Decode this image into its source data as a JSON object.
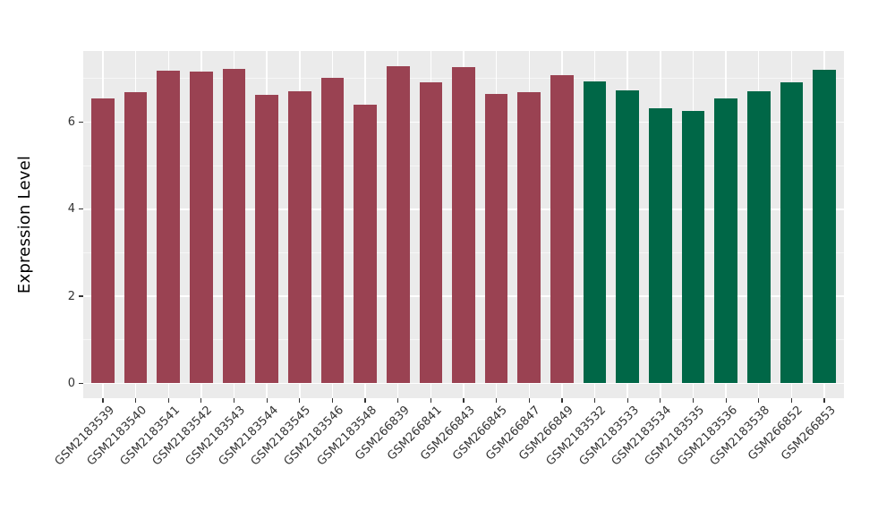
{
  "chart_data": {
    "type": "bar",
    "title": "",
    "xlabel": "",
    "ylabel": "Expression Level",
    "categories": [
      "GSM2183539",
      "GSM2183540",
      "GSM2183541",
      "GSM2183542",
      "GSM2183543",
      "GSM2183544",
      "GSM2183545",
      "GSM2183546",
      "GSM2183548",
      "GSM266839",
      "GSM266841",
      "GSM266843",
      "GSM266845",
      "GSM266847",
      "GSM266849",
      "GSM2183532",
      "GSM2183533",
      "GSM2183534",
      "GSM2183535",
      "GSM2183536",
      "GSM2183538",
      "GSM266852",
      "GSM266853"
    ],
    "values": [
      6.55,
      6.7,
      7.18,
      7.16,
      7.23,
      6.63,
      6.71,
      7.02,
      6.4,
      7.29,
      6.91,
      7.26,
      6.64,
      6.69,
      7.08,
      6.94,
      6.74,
      6.33,
      6.26,
      6.54,
      6.71,
      6.92,
      7.2
    ],
    "bar_groups": [
      0,
      0,
      0,
      0,
      0,
      0,
      0,
      0,
      0,
      0,
      0,
      0,
      0,
      0,
      0,
      1,
      1,
      1,
      1,
      1,
      1,
      1,
      1
    ],
    "group_colors": [
      "#9A4252",
      "#006747"
    ],
    "y_ticks": [
      0,
      2,
      4,
      6
    ],
    "y_minor_gridlines": [
      1,
      3,
      5,
      7
    ],
    "ylim": [
      -0.34,
      7.64
    ],
    "x_tick_angle": -45,
    "grid": "on",
    "legend": "none",
    "panel_bg": "#EBEBEB",
    "grid_color": "#FFFFFF",
    "tick_text_color": "#333333",
    "axis_title_color": "#000000"
  }
}
